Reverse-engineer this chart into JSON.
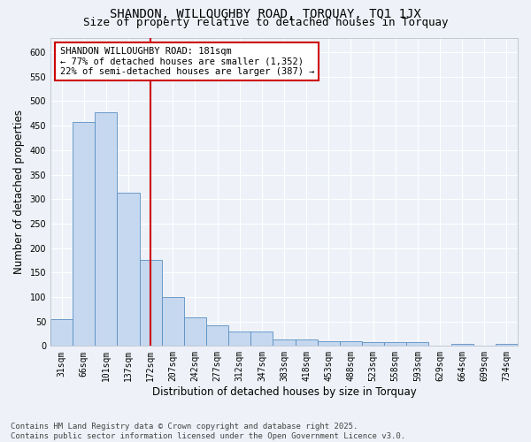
{
  "title_line1": "SHANDON, WILLOUGHBY ROAD, TORQUAY, TQ1 1JX",
  "title_line2": "Size of property relative to detached houses in Torquay",
  "xlabel": "Distribution of detached houses by size in Torquay",
  "ylabel": "Number of detached properties",
  "categories": [
    "31sqm",
    "66sqm",
    "101sqm",
    "137sqm",
    "172sqm",
    "207sqm",
    "242sqm",
    "277sqm",
    "312sqm",
    "347sqm",
    "383sqm",
    "418sqm",
    "453sqm",
    "488sqm",
    "523sqm",
    "558sqm",
    "593sqm",
    "629sqm",
    "664sqm",
    "699sqm",
    "734sqm"
  ],
  "values": [
    55,
    458,
    478,
    313,
    175,
    100,
    59,
    42,
    30,
    30,
    14,
    14,
    9,
    9,
    8,
    8,
    7,
    0,
    4,
    0,
    4
  ],
  "bar_color": "#c5d8f0",
  "bar_edge_color": "#5a8fc0",
  "highlight_bar_index": 4,
  "highlight_line_color": "#cc0000",
  "annotation_text": "SHANDON WILLOUGHBY ROAD: 181sqm\n← 77% of detached houses are smaller (1,352)\n22% of semi-detached houses are larger (387) →",
  "annotation_box_color": "#ffffff",
  "annotation_box_edge": "#cc0000",
  "ylim": [
    0,
    630
  ],
  "yticks": [
    0,
    50,
    100,
    150,
    200,
    250,
    300,
    350,
    400,
    450,
    500,
    550,
    600
  ],
  "footer_line1": "Contains HM Land Registry data © Crown copyright and database right 2025.",
  "footer_line2": "Contains public sector information licensed under the Open Government Licence v3.0.",
  "background_color": "#eef2f8",
  "grid_color": "#ffffff",
  "title_fontsize": 10,
  "subtitle_fontsize": 9,
  "axis_label_fontsize": 8.5,
  "tick_fontsize": 7,
  "annotation_fontsize": 7.5,
  "footer_fontsize": 6.5
}
